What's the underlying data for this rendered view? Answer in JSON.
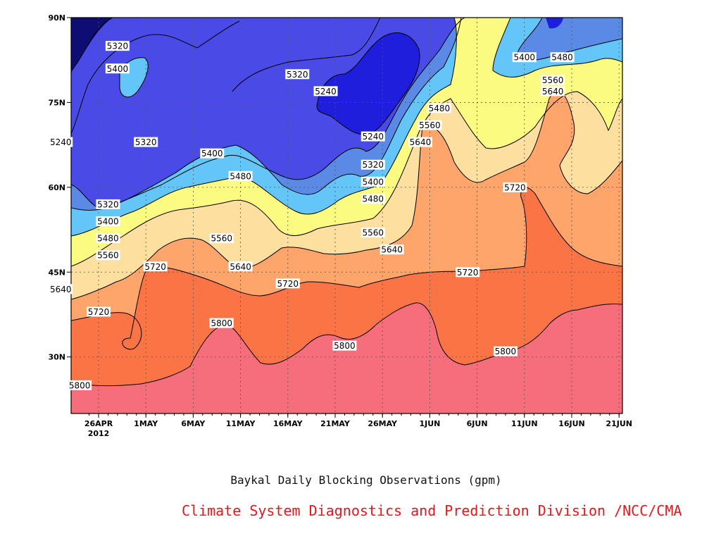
{
  "chart_data": {
    "type": "contour",
    "title": "Baykal Daily Blocking Observations (gpm)",
    "credit": "Climate System Diagnostics and Prediction Division /NCC/CMA",
    "x_ticks": [
      "26APR",
      "1MAY",
      "6MAY",
      "11MAY",
      "16MAY",
      "21MAY",
      "26MAY",
      "1JUN",
      "6JUN",
      "11JUN",
      "16JUN",
      "21JUN"
    ],
    "x_year": "2012",
    "y_ticks": [
      "30N",
      "45N",
      "60N",
      "75N",
      "90N"
    ],
    "ylim": [
      20,
      90
    ],
    "grid": true,
    "contour_levels": [
      5240,
      5320,
      5400,
      5480,
      5560,
      5640,
      5720,
      5800
    ],
    "fill_colors": [
      "#0d0d73",
      "#1e1edc",
      "#4a4ae6",
      "#5a8ae6",
      "#64c6f8",
      "#fbfb82",
      "#fde0a0",
      "#fda56a",
      "#fb7446",
      "#f66e7c"
    ],
    "contour_labels": [
      {
        "text": "5320",
        "x": "28APR",
        "y": "85N"
      },
      {
        "text": "5400",
        "x": "28APR",
        "y": "81N"
      },
      {
        "text": "5240",
        "x": "22APR",
        "y": "68N"
      },
      {
        "text": "5320",
        "x": "1MAY",
        "y": "68N"
      },
      {
        "text": "5320",
        "x": "17MAY",
        "y": "80N"
      },
      {
        "text": "5240",
        "x": "20MAY",
        "y": "77N"
      },
      {
        "text": "5240",
        "x": "25MAY",
        "y": "69N"
      },
      {
        "text": "5320",
        "x": "25MAY",
        "y": "64N"
      },
      {
        "text": "5400",
        "x": "25MAY",
        "y": "61N"
      },
      {
        "text": "5480",
        "x": "25MAY",
        "y": "58N"
      },
      {
        "text": "5560",
        "x": "25MAY",
        "y": "52N"
      },
      {
        "text": "5640",
        "x": "27MAY",
        "y": "49N"
      },
      {
        "text": "5400",
        "x": "8MAY",
        "y": "66N"
      },
      {
        "text": "5480",
        "x": "11MAY",
        "y": "62N"
      },
      {
        "text": "5560",
        "x": "9MAY",
        "y": "51N"
      },
      {
        "text": "5640",
        "x": "11MAY",
        "y": "46N"
      },
      {
        "text": "5720",
        "x": "16MAY",
        "y": "43N"
      },
      {
        "text": "5320",
        "x": "27APR",
        "y": "57N"
      },
      {
        "text": "5400",
        "x": "27APR",
        "y": "54N"
      },
      {
        "text": "5480",
        "x": "27APR",
        "y": "51N"
      },
      {
        "text": "5560",
        "x": "27APR",
        "y": "48N"
      },
      {
        "text": "5640",
        "x": "22APR",
        "y": "42N"
      },
      {
        "text": "5720",
        "x": "26APR",
        "y": "38N"
      },
      {
        "text": "5720",
        "x": "2MAY",
        "y": "46N"
      },
      {
        "text": "5800",
        "x": "24APR",
        "y": "25N"
      },
      {
        "text": "5800",
        "x": "9MAY",
        "y": "36N"
      },
      {
        "text": "5800",
        "x": "22MAY",
        "y": "32N"
      },
      {
        "text": "5480",
        "x": "1JUN",
        "y": "74N"
      },
      {
        "text": "5560",
        "x": "31MAY",
        "y": "71N"
      },
      {
        "text": "5640",
        "x": "30MAY",
        "y": "68N"
      },
      {
        "text": "5720",
        "x": "4JUN",
        "y": "45N"
      },
      {
        "text": "5800",
        "x": "8JUN",
        "y": "31N"
      },
      {
        "text": "5720",
        "x": "9JUN",
        "y": "60N"
      },
      {
        "text": "5400",
        "x": "10JUN",
        "y": "83N"
      },
      {
        "text": "5480",
        "x": "14JUN",
        "y": "83N"
      },
      {
        "text": "5560",
        "x": "13JUN",
        "y": "79N"
      },
      {
        "text": "5640",
        "x": "13JUN",
        "y": "77N"
      }
    ]
  }
}
